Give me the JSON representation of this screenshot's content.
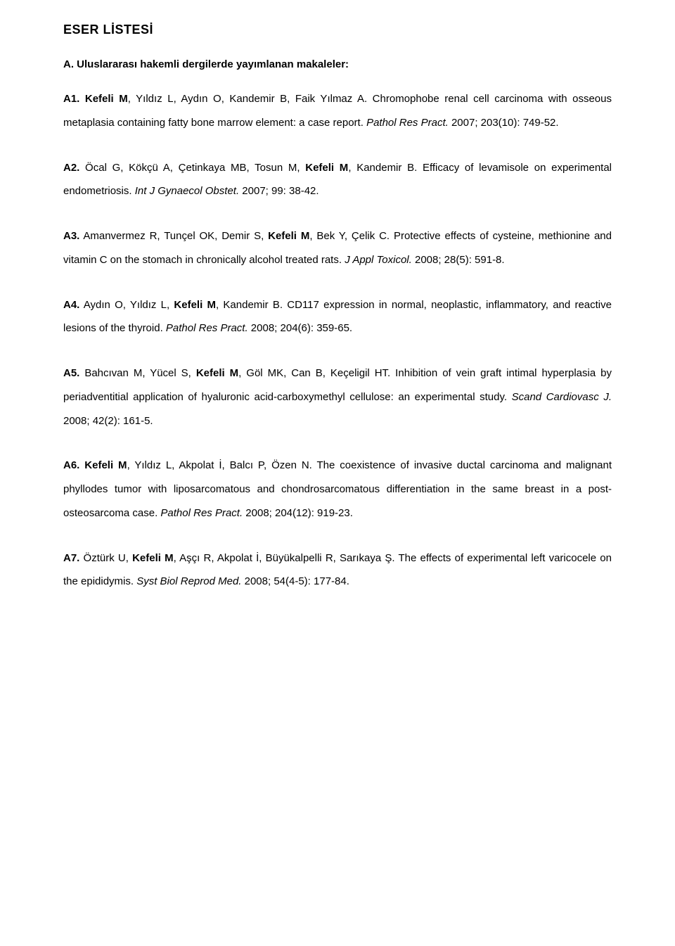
{
  "title": "ESER LİSTESİ",
  "section_heading": "A. Uluslararası hakemli dergilerde yayımlanan makaleler:",
  "entries": [
    {
      "label": "A1.",
      "bold_authors": "Kefeli M",
      "rest_authors": ", Yıldız L, Aydın O, Kandemir B, Faik Yılmaz A. Chromophobe renal cell carcinoma with osseous metaplasia containing fatty bone marrow element: a case report. ",
      "journal": "Pathol Res Pract.",
      "cite": " 2007; 203(10): 749-52."
    },
    {
      "label": "A2.",
      "bold_authors": "",
      "rest_authors": " Öcal G, Kökçü A, Çetinkaya MB, Tosun M, ",
      "bold_mid": "Kefeli M",
      "rest2": ", Kandemir B. Efficacy of levamisole on experimental endometriosis. ",
      "journal": "Int J Gynaecol Obstet.",
      "cite": " 2007; 99: 38-42."
    },
    {
      "label": "A3.",
      "bold_authors": "",
      "rest_authors": " Amanvermez R, Tunçel OK, Demir S, ",
      "bold_mid": "Kefeli M",
      "rest2": ", Bek Y, Çelik C. Protective effects of cysteine, methionine and vitamin C on the stomach in chronically alcohol treated rats. ",
      "journal": "J Appl Toxicol.",
      "cite": " 2008; 28(5): 591-8."
    },
    {
      "label": "A4.",
      "bold_authors": "",
      "rest_authors": " Aydın O, Yıldız L, ",
      "bold_mid": "Kefeli M",
      "rest2": ", Kandemir B. CD117 expression in normal, neoplastic, inflammatory, and reactive lesions of the thyroid. ",
      "journal": "Pathol Res Pract.",
      "cite": " 2008; 204(6): 359-65."
    },
    {
      "label": "A5.",
      "bold_authors": "",
      "rest_authors": " Bahcıvan M, Yücel S, ",
      "bold_mid": "Kefeli M",
      "rest2": ", Göl MK, Can B, Keçeligil HT. Inhibition of vein graft intimal hyperplasia by periadventitial application of hyaluronic acid-carboxymethyl cellulose: an experimental study. ",
      "journal": "Scand Cardiovasc J.",
      "cite": " 2008; 42(2): 161-5."
    },
    {
      "label": "A6.",
      "bold_authors": "Kefeli M",
      "rest_authors": ", Yıldız L, Akpolat İ, Balcı P, Özen N. The coexistence of invasive ductal carcinoma and malignant phyllodes tumor with liposarcomatous and chondrosarcomatous differentiation in the same breast in a post-osteosarcoma case. ",
      "journal": "Pathol Res Pract.",
      "cite": " 2008; 204(12): 919-23."
    },
    {
      "label": "A7.",
      "bold_authors": "",
      "rest_authors": " Öztürk U, ",
      "bold_mid": "Kefeli M",
      "rest2": ", Aşçı R, Akpolat İ, Büyükalpelli R, Sarıkaya Ş. The effects of experimental left varicocele on the epididymis. ",
      "journal": "Syst Biol Reprod Med.",
      "cite": " 2008; 54(4-5): 177-84."
    }
  ]
}
